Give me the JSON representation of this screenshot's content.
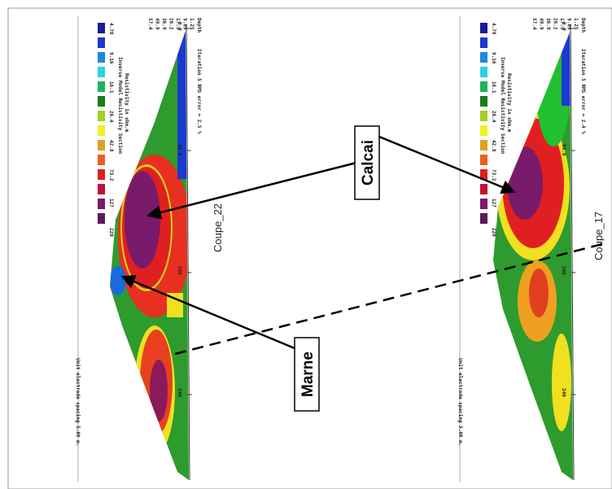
{
  "annotations": {
    "calcai": "Calcai",
    "marne": "Marne"
  },
  "sections": [
    {
      "label": "Coupe_22",
      "depth_label": "Depth",
      "header": "Iteration 5 RMS error = 2.5 %",
      "depths": [
        "1.25",
        "9.09",
        "17.3",
        "26.2",
        "36.9",
        "49.9",
        "57.4"
      ],
      "x_ticks": [
        "0.0",
        "80.0",
        "160",
        "240"
      ],
      "title": "Inverse Model Resistivity Section",
      "legend_title": "Resistivity in ohm.m",
      "legend": [
        "4.78",
        "9.16",
        "16.1",
        "26.4",
        "42.8",
        "73.2",
        "127",
        "220"
      ],
      "footer": "Unit electrode spacing 5.00 m."
    },
    {
      "label": "Coupe_17",
      "depth_label": "Depth",
      "header": "Iteration 5 RMS error = 2.4 %",
      "depths": [
        "1.25",
        "9.09",
        "17.3",
        "26.2",
        "36.9",
        "49.9",
        "57.4"
      ],
      "x_ticks": [
        "0.0",
        "80.0",
        "160",
        "240"
      ],
      "title": "Inverse Model Resistivity Section",
      "legend_title": "Resistivity in ohm.m",
      "legend": [
        "4.78",
        "9.16",
        "16.1",
        "26.4",
        "42.8",
        "73.2",
        "127",
        "220"
      ],
      "footer": "Unit electrode spacing 5.00 m."
    }
  ]
}
